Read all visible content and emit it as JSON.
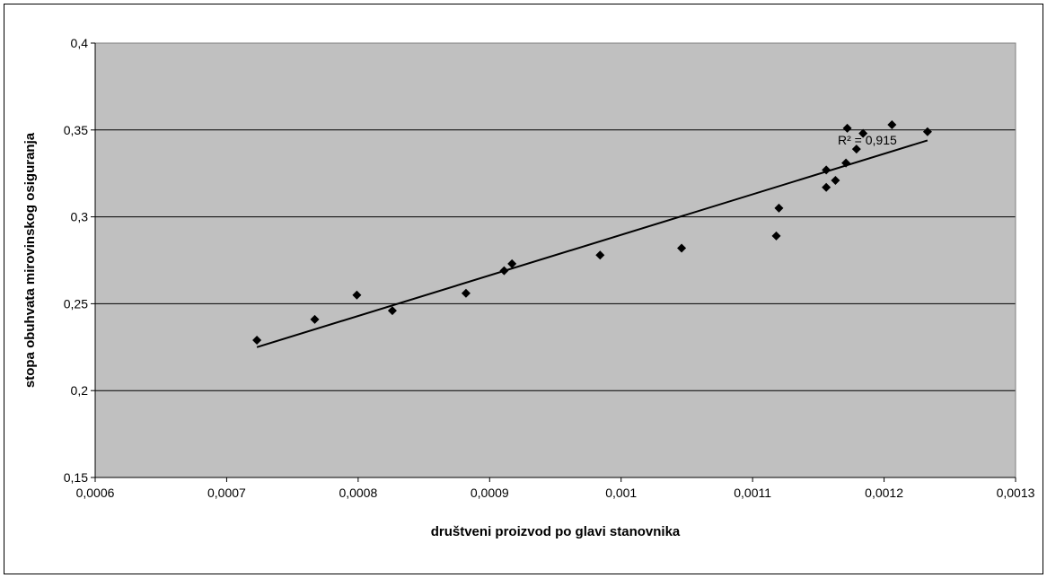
{
  "chart_data": {
    "type": "scatter",
    "title": "",
    "xlabel": "društveni proizvod po glavi stanovnika",
    "ylabel": "stopa obuhvata mirovinskog osiguranja",
    "xlim": [
      0.0006,
      0.0013
    ],
    "ylim": [
      0.15,
      0.4
    ],
    "x_ticks": [
      0.0006,
      0.0007,
      0.0008,
      0.0009,
      0.001,
      0.0011,
      0.0012,
      0.0013
    ],
    "x_tick_labels": [
      "0,0006",
      "0,0007",
      "0,0008",
      "0,0009",
      "0,001",
      "0,0011",
      "0,0012",
      "0,0013"
    ],
    "y_ticks": [
      0.15,
      0.2,
      0.25,
      0.3,
      0.35,
      0.4
    ],
    "y_tick_labels": [
      "0,15",
      "0,2",
      "0,25",
      "0,3",
      "0,35",
      "0,4"
    ],
    "grid": "horizontal",
    "plot_background": "#c0c0c0",
    "marker_color": "#000000",
    "points": [
      {
        "x": 0.000723,
        "y": 0.229
      },
      {
        "x": 0.000767,
        "y": 0.241
      },
      {
        "x": 0.000799,
        "y": 0.255
      },
      {
        "x": 0.000826,
        "y": 0.246
      },
      {
        "x": 0.000882,
        "y": 0.256
      },
      {
        "x": 0.000911,
        "y": 0.269
      },
      {
        "x": 0.000917,
        "y": 0.273
      },
      {
        "x": 0.000984,
        "y": 0.278
      },
      {
        "x": 0.001046,
        "y": 0.282
      },
      {
        "x": 0.001118,
        "y": 0.289
      },
      {
        "x": 0.00112,
        "y": 0.305
      },
      {
        "x": 0.001156,
        "y": 0.317
      },
      {
        "x": 0.001156,
        "y": 0.327
      },
      {
        "x": 0.001163,
        "y": 0.321
      },
      {
        "x": 0.001171,
        "y": 0.331
      },
      {
        "x": 0.001172,
        "y": 0.351
      },
      {
        "x": 0.001179,
        "y": 0.339
      },
      {
        "x": 0.001184,
        "y": 0.348
      },
      {
        "x": 0.001206,
        "y": 0.353
      },
      {
        "x": 0.001233,
        "y": 0.349
      }
    ],
    "trendline": {
      "x": [
        0.000723,
        0.001233
      ],
      "y": [
        0.225,
        0.344
      ]
    },
    "annotation": "R² = 0,915"
  }
}
